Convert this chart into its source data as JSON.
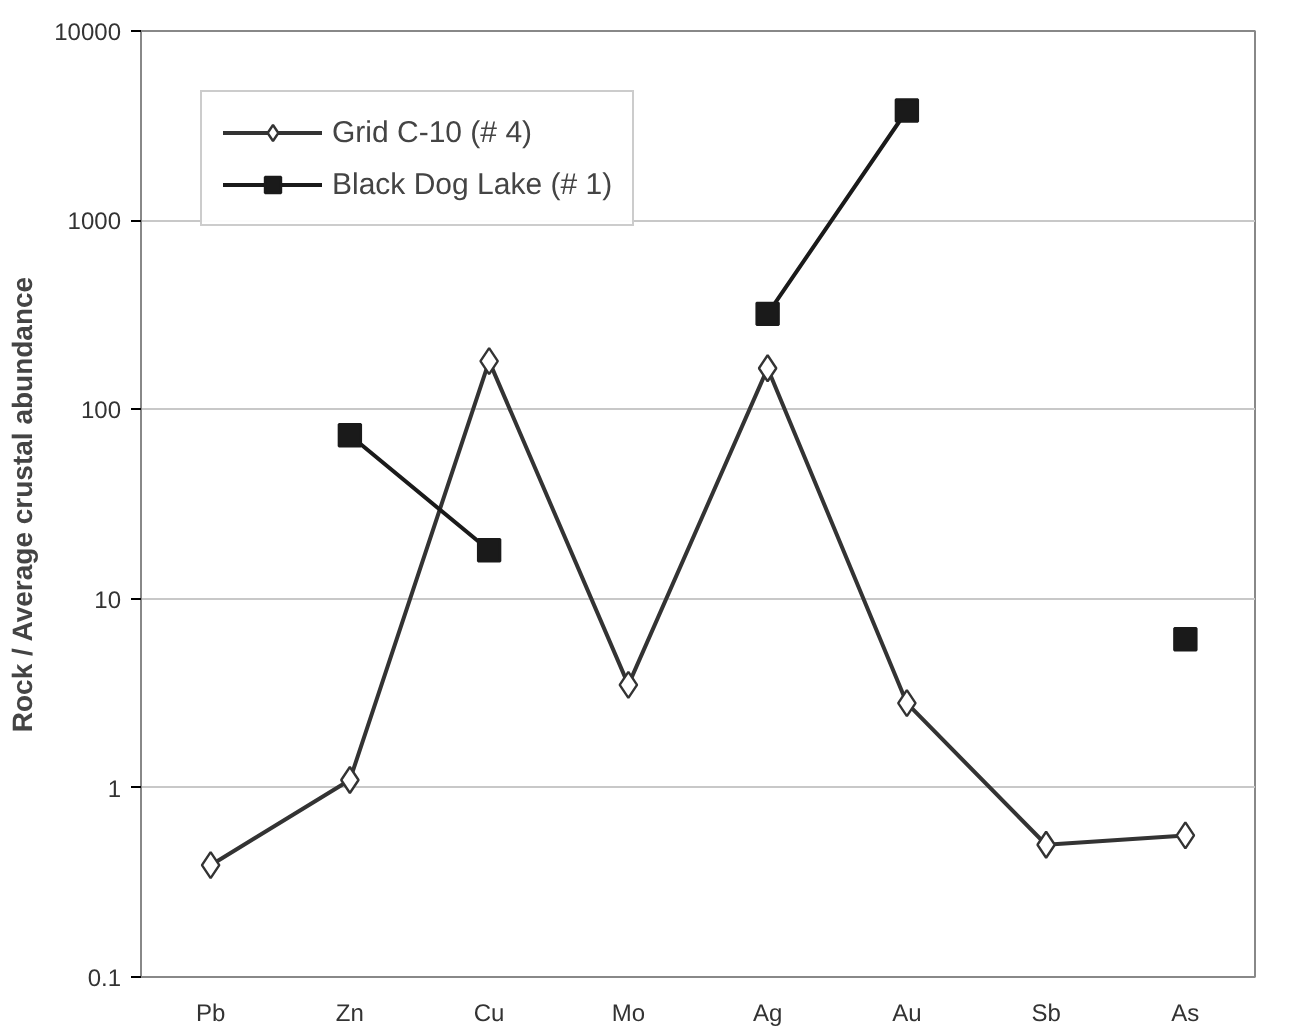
{
  "chart_data": {
    "type": "line",
    "ylabel": "Rock / Average crustal abundance",
    "categories": [
      "Pb",
      "Zn",
      "Cu",
      "Mo",
      "Ag",
      "Au",
      "Sb",
      "As"
    ],
    "series": [
      {
        "name": "Grid C-10 (# 4)",
        "color": "#333333",
        "marker": "diamond",
        "values": [
          0.39,
          1.1,
          180,
          3.5,
          165,
          2.8,
          0.5,
          0.56
        ]
      },
      {
        "name": "Black Dog Lake (# 1)",
        "color": "#1a1a1a",
        "marker": "square",
        "values": [
          null,
          73,
          18,
          null,
          320,
          3800,
          null,
          6.1
        ]
      }
    ],
    "log": true,
    "ylim": [
      0.1,
      10000
    ],
    "yticks": [
      0.1,
      1,
      10,
      100,
      1000,
      10000
    ],
    "grid": "y",
    "legend": "top left",
    "line_style": "solid"
  }
}
